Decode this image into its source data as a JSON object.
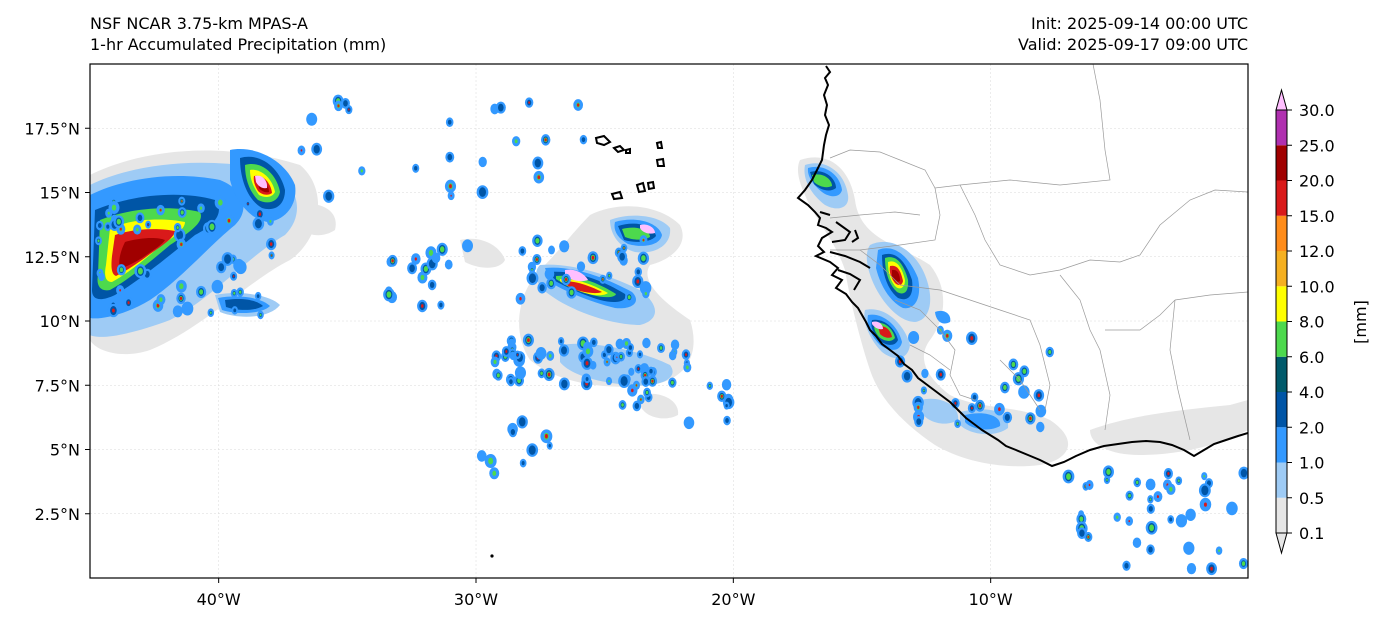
{
  "header": {
    "model": "NSF NCAR 3.75-km MPAS-A",
    "field": "1-hr Accumulated Precipitation (mm)",
    "init": "Init: 2025-09-14 00:00 UTC",
    "valid": "Valid: 2025-09-17 09:00 UTC"
  },
  "axes": {
    "lat_ticks": [
      "17.5°N",
      "15°N",
      "12.5°N",
      "10°N",
      "7.5°N",
      "5°N",
      "2.5°N"
    ],
    "lat_values": [
      17.5,
      15,
      12.5,
      10,
      7.5,
      5,
      2.5
    ],
    "lon_ticks": [
      "40°W",
      "30°W",
      "20°W",
      "10°W"
    ],
    "lon_values": [
      -40,
      -30,
      -20,
      -10
    ],
    "lon_range": [
      -45,
      0
    ],
    "lat_range": [
      0,
      20
    ]
  },
  "colorbar": {
    "unit_label": "[mm]",
    "levels": [
      "0.1",
      "0.5",
      "1.0",
      "2.0",
      "4.0",
      "6.0",
      "8.0",
      "10.0",
      "12.0",
      "15.0",
      "20.0",
      "25.0",
      "30.0"
    ],
    "colors": [
      "#e6e6e6",
      "#9ecbf5",
      "#3399ff",
      "#0055a6",
      "#005a6b",
      "#4dd94d",
      "#ffff00",
      "#f5b021",
      "#ff8c1a",
      "#d91a1a",
      "#a00000",
      "#b030b0",
      "#ffbfff"
    ],
    "over_color": "#ffbfff"
  },
  "precip_colors": {
    "light": "#e6e6e6",
    "pale_blue": "#9ecbf5",
    "blue": "#3399ff",
    "dark_blue": "#0055a6",
    "green": "#4dd94d",
    "yellow": "#ffff00",
    "orange": "#ff8c1a",
    "red": "#d91a1a",
    "dark_red": "#a00000",
    "pink": "#ffbfff"
  }
}
